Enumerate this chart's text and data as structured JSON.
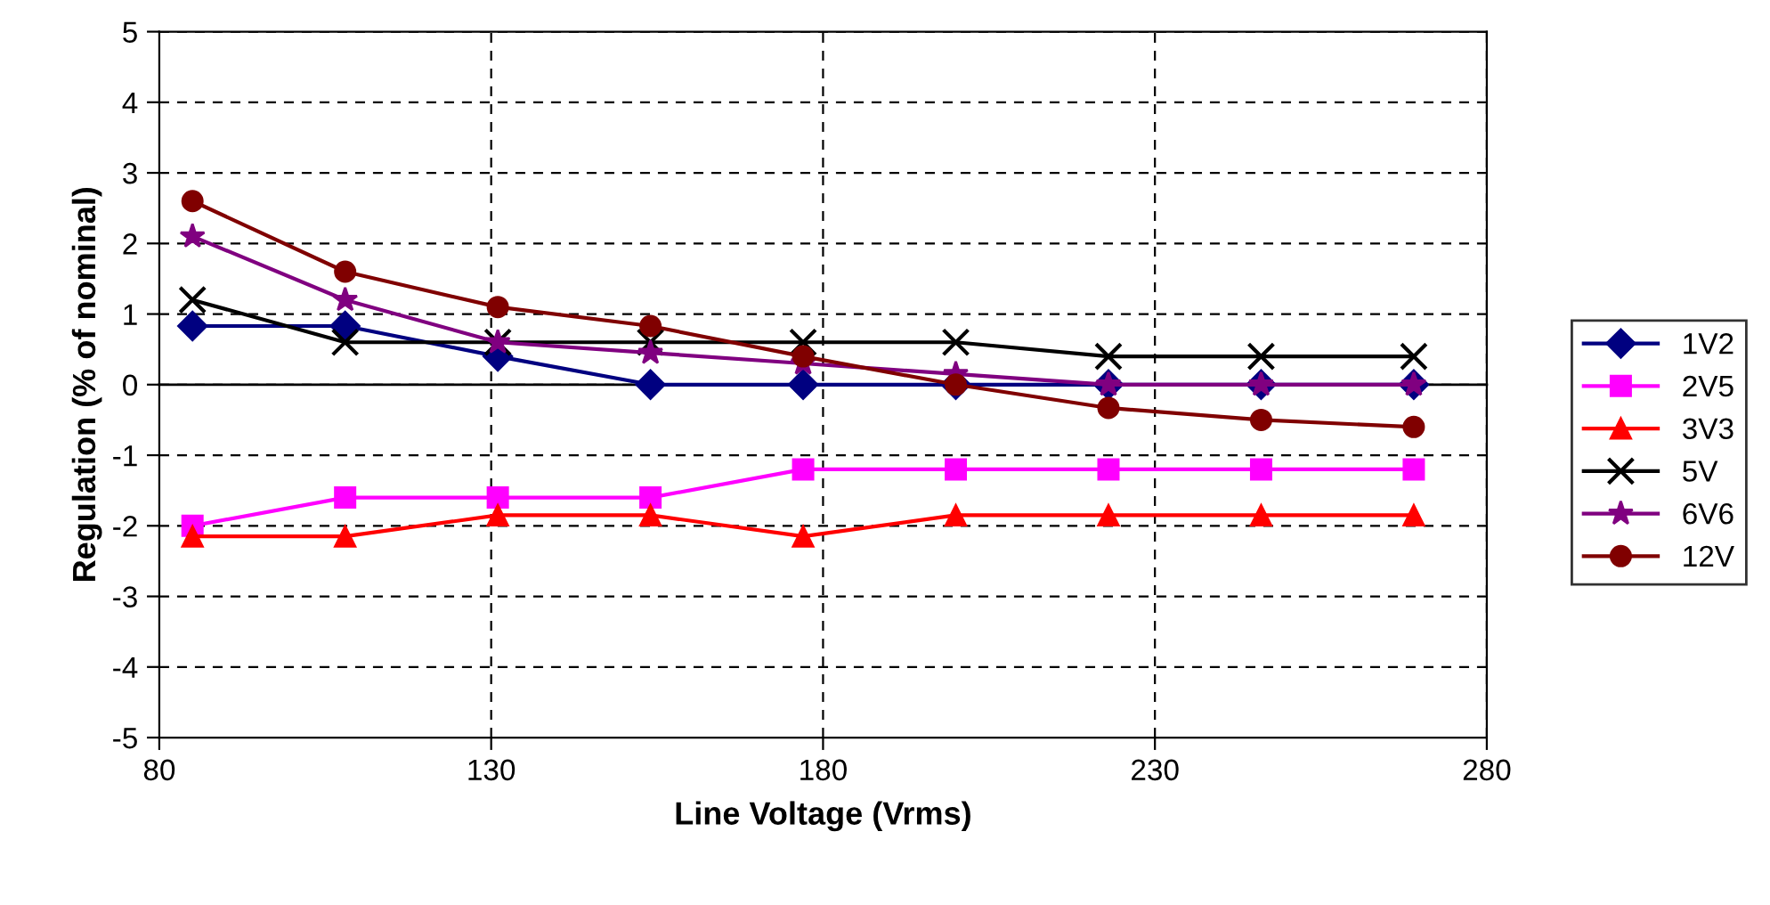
{
  "chart_data": {
    "type": "line",
    "xlabel": "Line Voltage (Vrms)",
    "ylabel": "Regulation (% of nominal)",
    "x": [
      85,
      108,
      131,
      154,
      177,
      200,
      223,
      246,
      269
    ],
    "xlim": [
      80,
      280
    ],
    "xticks": [
      80,
      130,
      180,
      230,
      280
    ],
    "ylim": [
      -5,
      5
    ],
    "yticks": [
      -5,
      -4,
      -3,
      -2,
      -1,
      0,
      1,
      2,
      3,
      4,
      5
    ],
    "grid": true,
    "legend": "right",
    "series": [
      {
        "name": "1V2",
        "color": "#000080",
        "marker": "diamond",
        "values": [
          0.83,
          0.83,
          0.4,
          0,
          0,
          0,
          0,
          0,
          0
        ]
      },
      {
        "name": "2V5",
        "color": "#ff00ff",
        "marker": "square",
        "values": [
          -2.0,
          -1.6,
          -1.6,
          -1.6,
          -1.2,
          -1.2,
          -1.2,
          -1.2,
          -1.2
        ]
      },
      {
        "name": "3V3",
        "color": "#ff0000",
        "marker": "triangle",
        "values": [
          -2.15,
          -2.15,
          -1.85,
          -1.85,
          -2.15,
          -1.85,
          -1.85,
          -1.85,
          -1.85
        ]
      },
      {
        "name": "5V",
        "color": "#000000",
        "marker": "cross",
        "values": [
          1.2,
          0.6,
          0.6,
          0.6,
          0.6,
          0.6,
          0.4,
          0.4,
          0.4
        ]
      },
      {
        "name": "6V6",
        "color": "#800080",
        "marker": "star",
        "values": [
          2.1,
          1.2,
          0.6,
          0.45,
          0.3,
          0.15,
          0,
          0,
          0
        ]
      },
      {
        "name": "12V",
        "color": "#800000",
        "marker": "circle",
        "values": [
          2.6,
          1.6,
          1.1,
          0.83,
          0.4,
          0,
          -0.33,
          -0.5,
          -0.6
        ]
      }
    ]
  }
}
